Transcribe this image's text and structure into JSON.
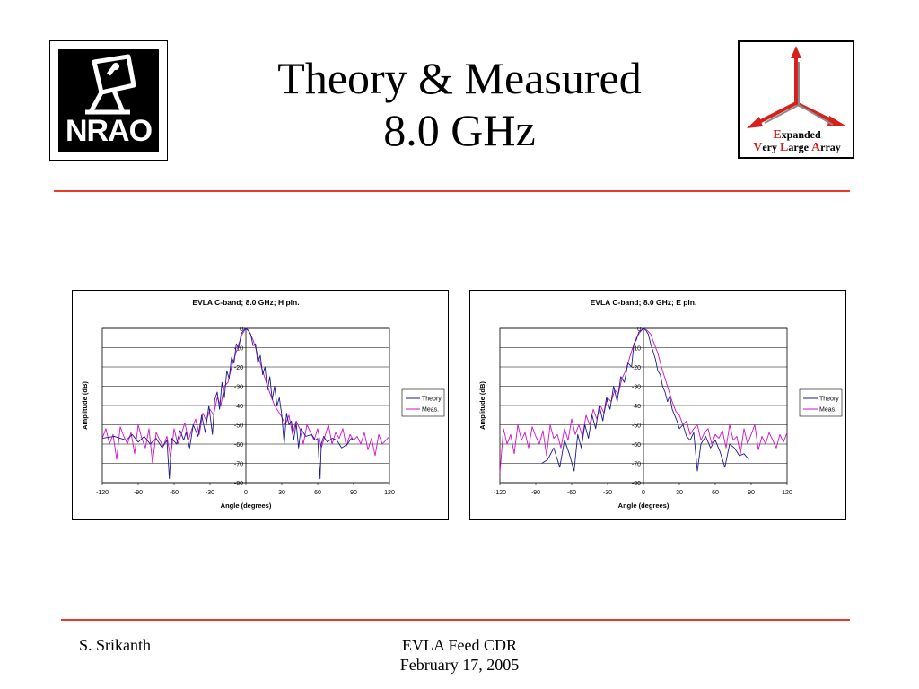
{
  "slide": {
    "title_line1": "Theory & Measured",
    "title_line2": "8.0 GHz",
    "footer_left": "S. Srikanth",
    "footer_center_line1": "EVLA Feed CDR",
    "footer_center_line2": "February 17, 2005",
    "accent_color": "#e8392b"
  },
  "logos": {
    "nrao": {
      "text": "NRAO",
      "icon": "nrao-dish-logo"
    },
    "evla": {
      "icon": "evla-tripod-arrows-logo",
      "line1_cap": "E",
      "line1_rest": "xpanded",
      "line2_cap1": "V",
      "line2_rest1": "ery ",
      "line2_cap2": "L",
      "line2_rest2": "arge ",
      "line2_cap3": "A",
      "line2_rest3": "rray"
    }
  },
  "chart_data": [
    {
      "type": "line",
      "title": "EVLA C-band; 8.0 GHz; H pln.",
      "xlabel": "Angle (degrees)",
      "ylabel": "Amplitude (dB)",
      "xlim": [
        -120,
        120
      ],
      "ylim": [
        -80,
        0
      ],
      "xticks": [
        -120,
        -90,
        -60,
        -30,
        0,
        30,
        60,
        90,
        120
      ],
      "yticks": [
        0,
        -10,
        -20,
        -30,
        -40,
        -50,
        -60,
        -70,
        -80
      ],
      "grid": "horizontal",
      "legend_position": "right",
      "series": [
        {
          "name": "Theory",
          "color": "#1a1a8c",
          "x": [
            -120,
            -110,
            -100,
            -95,
            -90,
            -85,
            -80,
            -75,
            -70,
            -66,
            -64,
            -62,
            -58,
            -55,
            -52,
            -50,
            -47,
            -44,
            -40,
            -37,
            -34,
            -31,
            -28,
            -26,
            -24,
            -22,
            -20,
            -18,
            -16,
            -14,
            -12,
            -10,
            -8,
            -6,
            -4,
            -2,
            0,
            2,
            4,
            6,
            8,
            10,
            12,
            14,
            16,
            18,
            20,
            22,
            24,
            26,
            28,
            30,
            32,
            34,
            36,
            38,
            40,
            42,
            44,
            46,
            50,
            55,
            58,
            60,
            62,
            63,
            65,
            68,
            72,
            76,
            80,
            85,
            88,
            90
          ],
          "y": [
            -57,
            -56,
            -58,
            -55,
            -59,
            -56,
            -60,
            -57,
            -62,
            -58,
            -78,
            -57,
            -60,
            -53,
            -58,
            -54,
            -62,
            -50,
            -56,
            -45,
            -54,
            -40,
            -55,
            -37,
            -33,
            -42,
            -28,
            -36,
            -22,
            -26,
            -15,
            -18,
            -8,
            -10,
            -3,
            -1,
            0,
            -1,
            -3,
            -9,
            -8,
            -18,
            -14,
            -24,
            -20,
            -32,
            -25,
            -37,
            -30,
            -40,
            -36,
            -45,
            -60,
            -44,
            -50,
            -48,
            -58,
            -49,
            -62,
            -52,
            -56,
            -55,
            -58,
            -57,
            -78,
            -60,
            -56,
            -59,
            -57,
            -58,
            -62,
            -60,
            -57,
            -58
          ]
        },
        {
          "name": "Meas.",
          "color": "#d010c8",
          "x": [
            -120,
            -117,
            -114,
            -111,
            -108,
            -105,
            -102,
            -99,
            -96,
            -93,
            -90,
            -87,
            -84,
            -81,
            -78,
            -75,
            -72,
            -69,
            -66,
            -63,
            -60,
            -57,
            -54,
            -51,
            -48,
            -45,
            -42,
            -39,
            -36,
            -33,
            -30,
            -27,
            -24,
            -21,
            -18,
            -15,
            -12,
            -9,
            -6,
            -3,
            0,
            3,
            6,
            9,
            12,
            15,
            18,
            21,
            24,
            27,
            30,
            33,
            36,
            39,
            42,
            45,
            48,
            51,
            54,
            57,
            60,
            63,
            66,
            69,
            72,
            75,
            78,
            81,
            84,
            87,
            90,
            93,
            96,
            99,
            102,
            105,
            108,
            111,
            114,
            117,
            120
          ],
          "y": [
            -57,
            -52,
            -60,
            -55,
            -68,
            -51,
            -56,
            -60,
            -54,
            -65,
            -50,
            -57,
            -62,
            -52,
            -70,
            -54,
            -58,
            -61,
            -56,
            -67,
            -52,
            -60,
            -55,
            -49,
            -58,
            -52,
            -47,
            -55,
            -44,
            -48,
            -42,
            -45,
            -36,
            -40,
            -30,
            -28,
            -20,
            -14,
            -8,
            -3,
            0,
            -2,
            -6,
            -12,
            -18,
            -24,
            -30,
            -35,
            -40,
            -43,
            -46,
            -50,
            -45,
            -55,
            -48,
            -52,
            -60,
            -50,
            -54,
            -58,
            -52,
            -62,
            -56,
            -50,
            -60,
            -54,
            -57,
            -52,
            -61,
            -55,
            -58,
            -56,
            -60,
            -54,
            -63,
            -57,
            -66,
            -55,
            -60,
            -58,
            -56
          ]
        }
      ]
    },
    {
      "type": "line",
      "title": "EVLA C-band; 8.0 GHz; E pln.",
      "xlabel": "Angle (degrees)",
      "ylabel": "Amplitude (dB)",
      "xlim": [
        -120,
        120
      ],
      "ylim": [
        -80,
        0
      ],
      "xticks": [
        -120,
        -90,
        -60,
        -30,
        0,
        30,
        60,
        90,
        120
      ],
      "yticks": [
        0,
        -10,
        -20,
        -30,
        -40,
        -50,
        -60,
        -70,
        -80
      ],
      "grid": "horizontal",
      "legend_position": "right",
      "series": [
        {
          "name": "Theory",
          "color": "#1a1a8c",
          "x": [
            -85,
            -80,
            -75,
            -70,
            -66,
            -62,
            -58,
            -55,
            -52,
            -49,
            -46,
            -43,
            -40,
            -37,
            -34,
            -31,
            -28,
            -25,
            -22,
            -19,
            -16,
            -13,
            -10,
            -8,
            -6,
            -4,
            -2,
            0,
            2,
            4,
            6,
            8,
            10,
            12,
            14,
            16,
            18,
            20,
            22,
            24,
            26,
            28,
            30,
            33,
            36,
            39,
            42,
            45,
            48,
            52,
            56,
            60,
            64,
            68,
            72,
            76,
            80,
            84,
            88
          ],
          "y": [
            -70,
            -68,
            -62,
            -72,
            -58,
            -65,
            -74,
            -55,
            -62,
            -50,
            -57,
            -45,
            -52,
            -40,
            -48,
            -36,
            -42,
            -30,
            -38,
            -25,
            -28,
            -18,
            -20,
            -8,
            -6,
            -2,
            -1,
            0,
            -1,
            -3,
            -8,
            -12,
            -16,
            -22,
            -24,
            -30,
            -33,
            -38,
            -35,
            -42,
            -45,
            -48,
            -52,
            -50,
            -56,
            -58,
            -54,
            -74,
            -60,
            -56,
            -62,
            -58,
            -64,
            -72,
            -60,
            -62,
            -66,
            -65,
            -68
          ]
        },
        {
          "name": "Meas.",
          "color": "#d010c8",
          "x": [
            -120,
            -117,
            -114,
            -111,
            -108,
            -105,
            -102,
            -99,
            -96,
            -93,
            -90,
            -87,
            -84,
            -81,
            -78,
            -75,
            -72,
            -69,
            -66,
            -63,
            -60,
            -57,
            -54,
            -51,
            -48,
            -45,
            -42,
            -39,
            -36,
            -33,
            -30,
            -27,
            -24,
            -21,
            -18,
            -15,
            -12,
            -9,
            -6,
            -3,
            0,
            3,
            6,
            9,
            12,
            15,
            18,
            21,
            24,
            27,
            30,
            33,
            36,
            39,
            42,
            45,
            48,
            51,
            54,
            57,
            60,
            63,
            66,
            69,
            72,
            75,
            78,
            81,
            84,
            87,
            90,
            93,
            96,
            99,
            102,
            105,
            108,
            111,
            114,
            117,
            120
          ],
          "y": [
            -75,
            -52,
            -60,
            -55,
            -65,
            -50,
            -58,
            -54,
            -62,
            -51,
            -56,
            -60,
            -53,
            -66,
            -50,
            -57,
            -55,
            -62,
            -52,
            -58,
            -47,
            -55,
            -50,
            -56,
            -45,
            -50,
            -42,
            -47,
            -40,
            -44,
            -36,
            -38,
            -32,
            -34,
            -26,
            -22,
            -16,
            -10,
            -5,
            -2,
            0,
            -1,
            -3,
            -8,
            -13,
            -20,
            -26,
            -32,
            -38,
            -43,
            -45,
            -50,
            -48,
            -55,
            -52,
            -50,
            -58,
            -54,
            -52,
            -60,
            -55,
            -57,
            -53,
            -62,
            -50,
            -58,
            -56,
            -65,
            -52,
            -60,
            -55,
            -50,
            -63,
            -56,
            -60,
            -54,
            -58,
            -62,
            -55,
            -59,
            -54
          ]
        }
      ]
    }
  ]
}
